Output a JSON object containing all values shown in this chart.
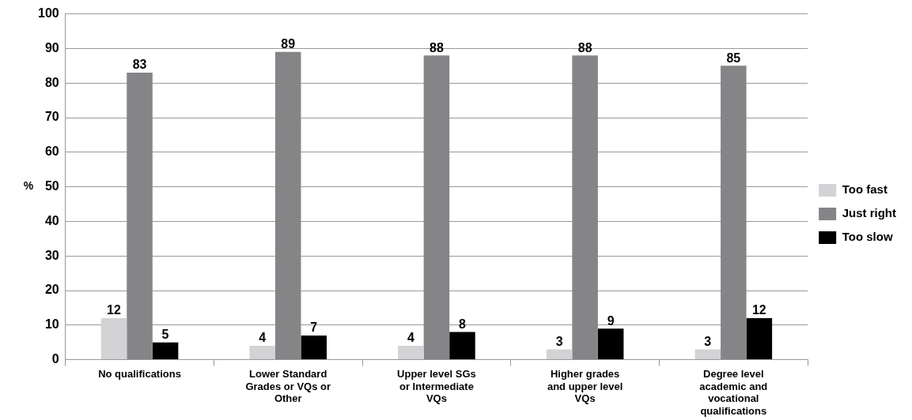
{
  "chart_data": {
    "type": "bar",
    "ylabel": "%",
    "categories": [
      "No qualifications",
      "Lower Standard Grades or VQs or Other",
      "Upper level SGs or Intermediate VQs",
      "Higher grades and upper level VQs",
      "Degree level academic and vocational qualifications"
    ],
    "series": [
      {
        "name": "Too fast",
        "color": "#d3d3d5",
        "values": [
          12,
          4,
          4,
          3,
          3
        ]
      },
      {
        "name": "Just right",
        "color": "#858587",
        "values": [
          83,
          89,
          88,
          88,
          85
        ]
      },
      {
        "name": "Too slow",
        "color": "#000000",
        "values": [
          5,
          7,
          8,
          9,
          12
        ]
      }
    ],
    "ylim": [
      0,
      100
    ],
    "yticks": [
      0,
      10,
      20,
      30,
      40,
      50,
      60,
      70,
      80,
      90,
      100
    ],
    "grid": "y",
    "legend": "right",
    "data_labels": true
  }
}
